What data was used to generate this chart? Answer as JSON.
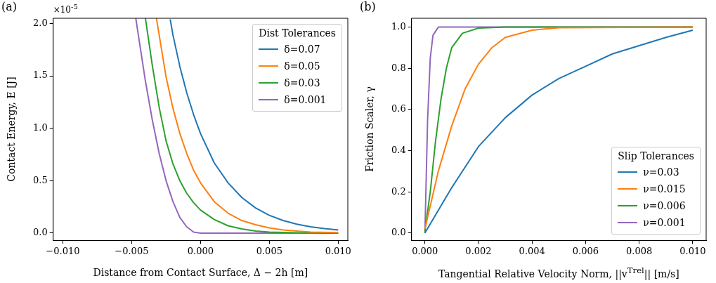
{
  "chart_data": [
    {
      "type": "line",
      "xlabel": "Distance from Contact Surface, Δ − 2h [m]",
      "ylabel": "Contact Energy, E [J]",
      "legend_title": "Dist Tolerances",
      "legend": "top right",
      "annotations": [
        "(a)",
        "×10$^{-5}$"
      ],
      "xlim": [
        -0.0107,
        0.0107
      ],
      "ylim": [
        -0.07,
        2.05
      ],
      "xticks": [
        {
          "value": -0.01,
          "label": "−0.010"
        },
        {
          "value": -0.005,
          "label": "−0.005"
        },
        {
          "value": 0,
          "label": "0.000"
        },
        {
          "value": 0.005,
          "label": "0.005"
        },
        {
          "value": 0.01,
          "label": "0.010"
        }
      ],
      "yticks": [
        {
          "value": 0,
          "label": "0.0"
        },
        {
          "value": 0.5,
          "label": "0.5"
        },
        {
          "value": 1,
          "label": "1.0"
        },
        {
          "value": 1.5,
          "label": "1.5"
        },
        {
          "value": 2,
          "label": "2.0"
        }
      ],
      "series": [
        {
          "name": "δ=0.07",
          "color": "#1f77b4",
          "x": [
            -0.0022,
            -0.002,
            -0.0015,
            -0.001,
            -0.0005,
            0,
            0.001,
            0.002,
            0.003,
            0.004,
            0.005,
            0.006,
            0.007,
            0.008,
            0.009,
            0.01
          ],
          "values": [
            2.04,
            1.89,
            1.59,
            1.34,
            1.13,
            0.95,
            0.67,
            0.48,
            0.34,
            0.24,
            0.17,
            0.12,
            0.085,
            0.06,
            0.043,
            0.03
          ]
        },
        {
          "name": "δ=0.05",
          "color": "#ff7f0e",
          "x": [
            -0.0032,
            -0.0025,
            -0.002,
            -0.0015,
            -0.001,
            -0.0005,
            0,
            0.001,
            0.002,
            0.003,
            0.004,
            0.005,
            0.006,
            0.007,
            0.008,
            0.01
          ],
          "values": [
            2.05,
            1.49,
            1.19,
            0.95,
            0.76,
            0.6,
            0.48,
            0.3,
            0.19,
            0.12,
            0.08,
            0.05,
            0.03,
            0.02,
            0.01,
            0.005
          ]
        },
        {
          "name": "δ=0.03",
          "color": "#2ca02c",
          "x": [
            -0.004,
            -0.0035,
            -0.003,
            -0.0025,
            -0.002,
            -0.0015,
            -0.001,
            -0.0005,
            0,
            0.001,
            0.002,
            0.003,
            0.004,
            0.005,
            0.007,
            0.01
          ],
          "values": [
            2.05,
            1.6,
            1.2,
            0.88,
            0.66,
            0.5,
            0.38,
            0.29,
            0.22,
            0.13,
            0.07,
            0.04,
            0.02,
            0.01,
            0.003,
            0
          ]
        },
        {
          "name": "δ=0.001",
          "color": "#9467bd",
          "x": [
            -0.0047,
            -0.004,
            -0.0035,
            -0.003,
            -0.0025,
            -0.002,
            -0.0015,
            -0.001,
            -0.0005,
            0,
            0.01
          ],
          "values": [
            2.05,
            1.45,
            1.08,
            0.76,
            0.5,
            0.3,
            0.15,
            0.06,
            0.01,
            0,
            0
          ]
        }
      ]
    },
    {
      "type": "line",
      "xlabel": "Tangential Relative Velocity Norm, ||v$^{Trel}$|| [m/s]",
      "ylabel": "Friction Scaler, γ",
      "legend_title": "Slip Tolerances",
      "legend": "bottom right",
      "annotations": [
        "(b)"
      ],
      "xlim": [
        -0.0005,
        0.0105
      ],
      "ylim": [
        -0.036,
        1.043
      ],
      "xticks": [
        {
          "value": 0,
          "label": "0.000"
        },
        {
          "value": 0.002,
          "label": "0.002"
        },
        {
          "value": 0.004,
          "label": "0.004"
        },
        {
          "value": 0.006,
          "label": "0.006"
        },
        {
          "value": 0.008,
          "label": "0.008"
        },
        {
          "value": 0.01,
          "label": "0.010"
        }
      ],
      "yticks": [
        {
          "value": 0,
          "label": "0.0"
        },
        {
          "value": 0.2,
          "label": "0.2"
        },
        {
          "value": 0.4,
          "label": "0.4"
        },
        {
          "value": 0.6,
          "label": "0.6"
        },
        {
          "value": 0.8,
          "label": "0.8"
        },
        {
          "value": 1,
          "label": "1.0"
        }
      ],
      "series": [
        {
          "name": "ν=0.03",
          "color": "#1f77b4",
          "x": [
            0,
            0.001,
            0.002,
            0.003,
            0.004,
            0.005,
            0.006,
            0.007,
            0.008,
            0.009,
            0.01
          ],
          "values": [
            0,
            0.22,
            0.42,
            0.56,
            0.67,
            0.75,
            0.81,
            0.87,
            0.91,
            0.95,
            0.985
          ]
        },
        {
          "name": "ν=0.015",
          "color": "#ff7f0e",
          "x": [
            0,
            0.0005,
            0.001,
            0.0015,
            0.002,
            0.0025,
            0.003,
            0.004,
            0.005,
            0.01
          ],
          "values": [
            0.02,
            0.3,
            0.52,
            0.7,
            0.82,
            0.9,
            0.95,
            0.985,
            0.997,
            1
          ]
        },
        {
          "name": "ν=0.006",
          "color": "#2ca02c",
          "x": [
            0,
            0.0002,
            0.0004,
            0.0006,
            0.0008,
            0.001,
            0.0014,
            0.002,
            0.003,
            0.01
          ],
          "values": [
            0.01,
            0.2,
            0.45,
            0.65,
            0.8,
            0.9,
            0.97,
            0.995,
            1,
            1
          ]
        },
        {
          "name": "ν=0.001",
          "color": "#9467bd",
          "x": [
            0,
            0.0001,
            0.0002,
            0.0003,
            0.0005,
            0.01
          ],
          "values": [
            0,
            0.55,
            0.85,
            0.96,
            1,
            1
          ]
        }
      ]
    }
  ]
}
